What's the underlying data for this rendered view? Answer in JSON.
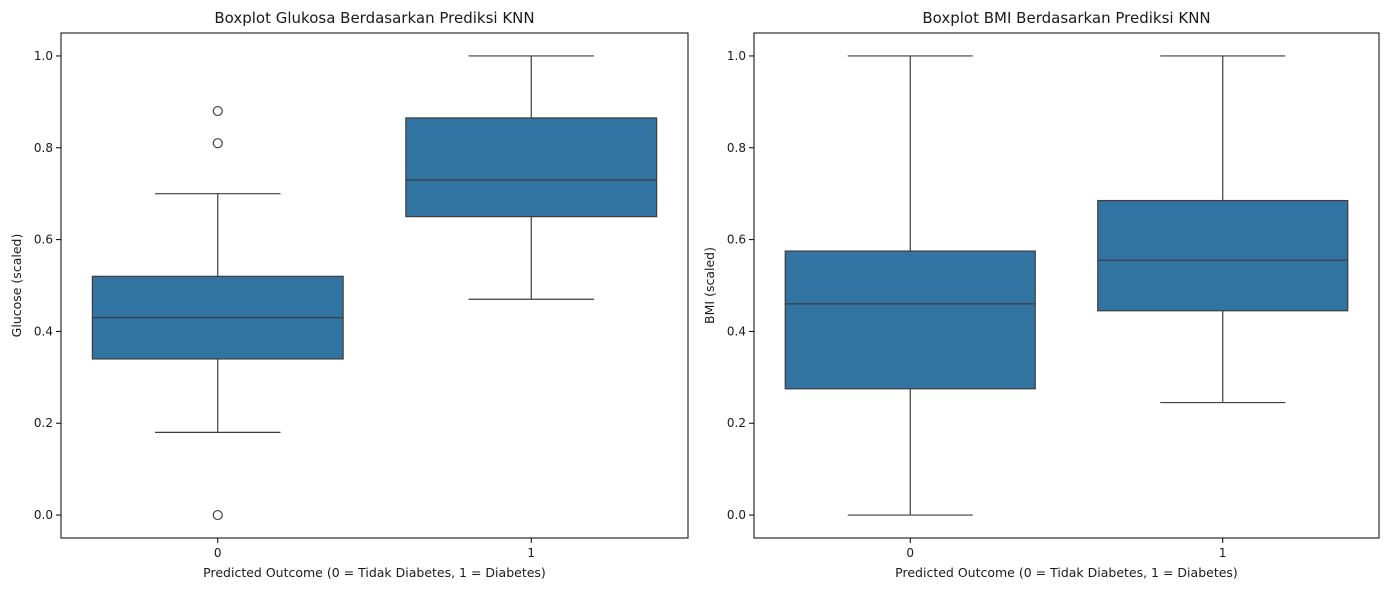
{
  "chart_data": [
    {
      "type": "boxplot",
      "title": "Boxplot Glukosa Berdasarkan Prediksi KNN",
      "xlabel": "Predicted Outcome (0 = Tidak Diabetes, 1 = Diabetes)",
      "ylabel": "Glucose (scaled)",
      "categories": [
        "0",
        "1"
      ],
      "ylim": [
        -0.05,
        1.05
      ],
      "yticks": [
        0.0,
        0.2,
        0.4,
        0.6,
        0.8,
        1.0
      ],
      "ytick_labels": [
        "0.0",
        "0.2",
        "0.4",
        "0.6",
        "0.8",
        "1.0"
      ],
      "color": "#3274a1",
      "boxes": [
        {
          "category": "0",
          "whisker_low": 0.18,
          "q1": 0.34,
          "median": 0.43,
          "q3": 0.52,
          "whisker_high": 0.7,
          "outliers": [
            0.88,
            0.81,
            0.0
          ]
        },
        {
          "category": "1",
          "whisker_low": 0.47,
          "q1": 0.65,
          "median": 0.73,
          "q3": 0.865,
          "whisker_high": 1.0,
          "outliers": []
        }
      ]
    },
    {
      "type": "boxplot",
      "title": "Boxplot BMI Berdasarkan Prediksi KNN",
      "xlabel": "Predicted Outcome (0 = Tidak Diabetes, 1 = Diabetes)",
      "ylabel": "BMI (scaled)",
      "categories": [
        "0",
        "1"
      ],
      "ylim": [
        -0.05,
        1.05
      ],
      "yticks": [
        0.0,
        0.2,
        0.4,
        0.6,
        0.8,
        1.0
      ],
      "ytick_labels": [
        "0.0",
        "0.2",
        "0.4",
        "0.6",
        "0.8",
        "1.0"
      ],
      "color": "#3274a1",
      "boxes": [
        {
          "category": "0",
          "whisker_low": 0.0,
          "q1": 0.275,
          "median": 0.46,
          "q3": 0.575,
          "whisker_high": 1.0,
          "outliers": []
        },
        {
          "category": "1",
          "whisker_low": 0.245,
          "q1": 0.445,
          "median": 0.555,
          "q3": 0.685,
          "whisker_high": 1.0,
          "outliers": []
        }
      ]
    }
  ]
}
